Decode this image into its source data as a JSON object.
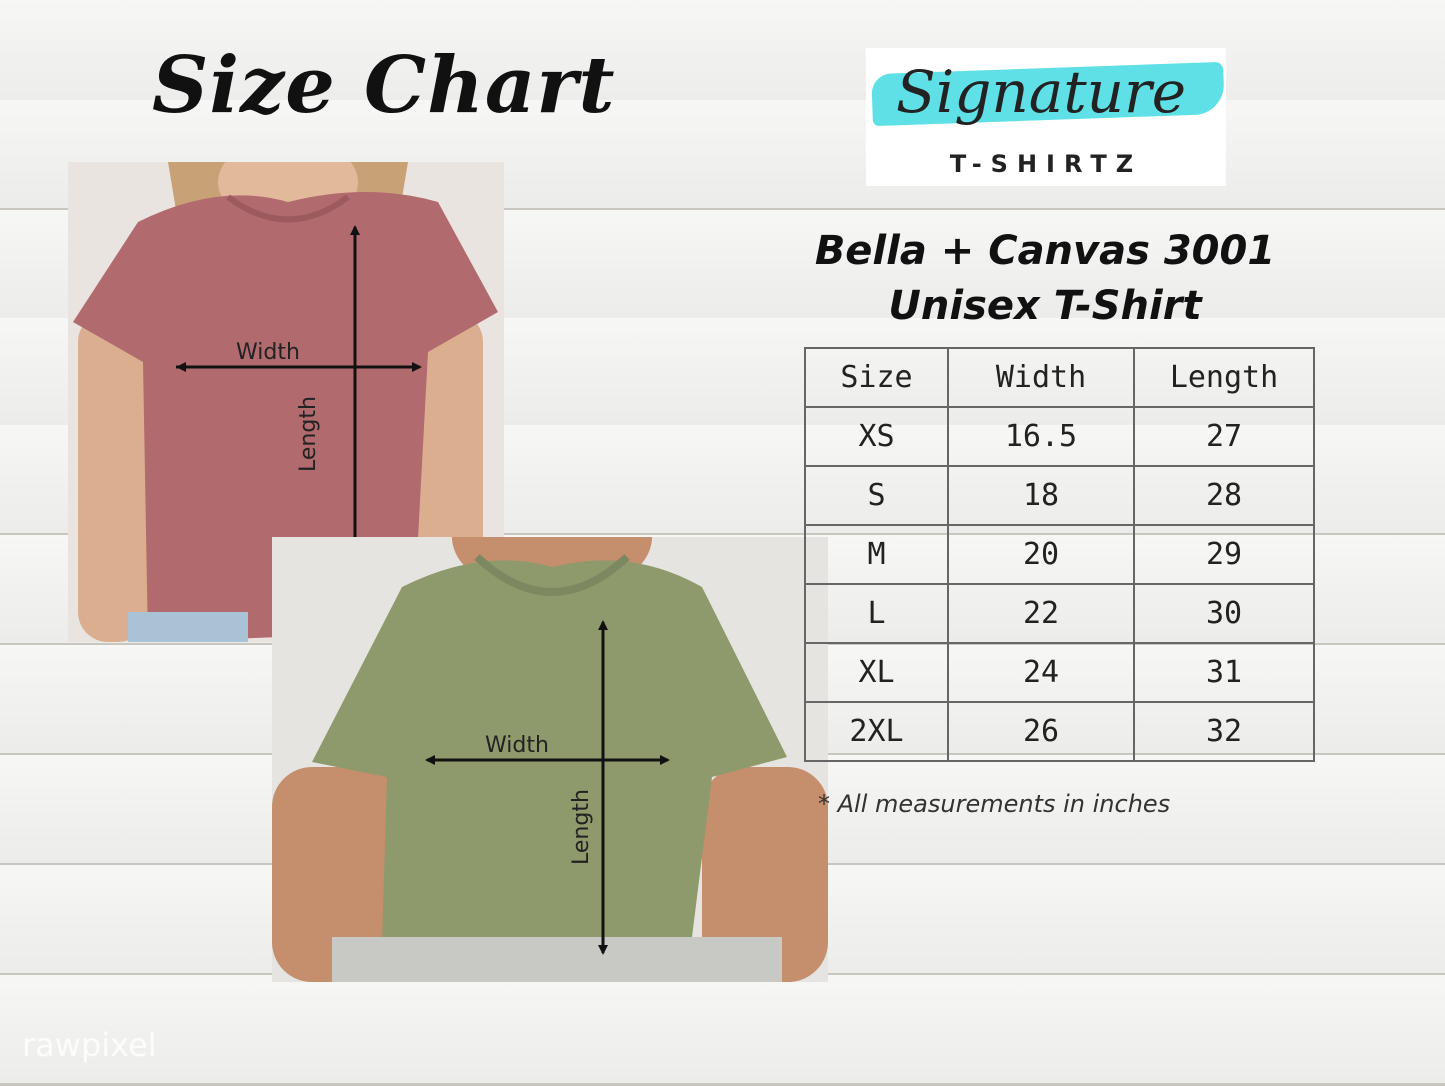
{
  "title": "Size Chart",
  "logo": {
    "script": "Signature",
    "subtitle": "T-SHIRTZ",
    "accent": "#5ee0e6"
  },
  "product": {
    "line1": "Bella + Canvas 3001",
    "line2": "Unisex T-Shirt"
  },
  "table": {
    "headers": [
      "Size",
      "Width",
      "Length"
    ],
    "rows": [
      [
        "XS",
        "16.5",
        "27"
      ],
      [
        "S",
        "18",
        "28"
      ],
      [
        "M",
        "20",
        "29"
      ],
      [
        "L",
        "22",
        "30"
      ],
      [
        "XL",
        "24",
        "31"
      ],
      [
        "2XL",
        "26",
        "32"
      ]
    ]
  },
  "note": "* All measurements in inches",
  "photos": {
    "women": {
      "width_label": "Width",
      "length_label": "Length",
      "shirt_color": "#b16a6e"
    },
    "men": {
      "width_label": "Width",
      "length_label": "Length",
      "shirt_color": "#8e9a6c"
    }
  },
  "watermark": "rawpixel"
}
